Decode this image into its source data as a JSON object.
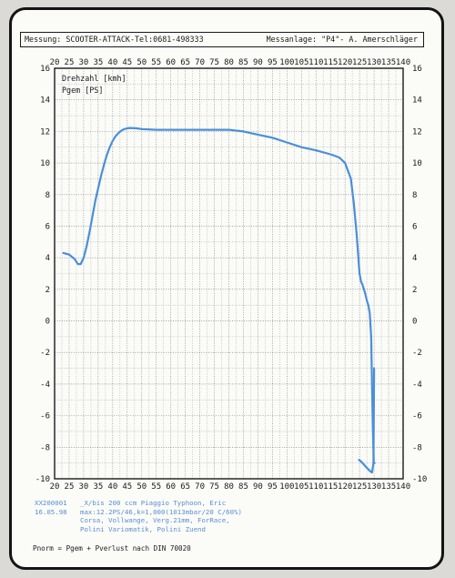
{
  "header": {
    "left": "Messung:  SCOOTER-ATTACK-Tel:0681-498333",
    "right": "Messanlage: \"P4\"- A. Amerschläger"
  },
  "chart_data": {
    "type": "line",
    "xlim": [
      20,
      140
    ],
    "ylim": [
      -10,
      16
    ],
    "x_ticks": [
      20,
      25,
      30,
      35,
      40,
      45,
      50,
      55,
      60,
      65,
      70,
      75,
      80,
      85,
      90,
      95,
      100,
      105,
      110,
      115,
      120,
      125,
      130,
      135,
      140
    ],
    "y_ticks": [
      -10,
      -8,
      -6,
      -4,
      -2,
      0,
      2,
      4,
      6,
      8,
      10,
      12,
      14,
      16
    ],
    "grid": true,
    "legend_position": "top-left",
    "labels": [
      "Drehzahl [kmh]",
      "Pgem [PS]"
    ],
    "series": [
      {
        "name": "Pgem [PS]",
        "color": "#4a8fd8",
        "x": [
          23,
          25,
          27,
          28,
          29,
          30,
          31,
          32,
          33,
          34,
          35,
          36,
          37,
          38,
          39,
          40,
          41,
          42,
          43,
          44,
          45,
          46,
          48,
          50,
          55,
          60,
          65,
          70,
          75,
          80,
          85,
          90,
          95,
          100,
          105,
          110,
          115,
          118,
          120,
          122,
          123,
          124,
          125,
          125.5,
          126,
          126.5,
          127,
          127.5,
          128,
          128.5,
          129,
          129.3,
          129.6,
          129.9,
          130.2
        ],
        "y": [
          4.3,
          4.2,
          3.9,
          3.6,
          3.6,
          4.0,
          4.7,
          5.6,
          6.6,
          7.6,
          8.4,
          9.2,
          9.9,
          10.5,
          11.0,
          11.4,
          11.7,
          11.9,
          12.05,
          12.15,
          12.2,
          12.22,
          12.2,
          12.15,
          12.1,
          12.1,
          12.1,
          12.1,
          12.1,
          12.1,
          12.0,
          11.8,
          11.6,
          11.3,
          11.0,
          10.8,
          10.55,
          10.35,
          10.0,
          9.0,
          7.5,
          5.5,
          3.0,
          2.5,
          2.3,
          2.0,
          1.7,
          1.3,
          1.0,
          0.5,
          -1.0,
          -4.0,
          -7.0,
          -9.0,
          -9.0
        ],
        "x2": [
          124.8,
          125.5,
          126.5,
          127.5,
          128.5,
          129.3,
          129.8,
          130.0
        ],
        "y2": [
          -8.8,
          -8.9,
          -9.1,
          -9.3,
          -9.5,
          -9.6,
          -9.0,
          -3.0
        ]
      }
    ]
  },
  "info": {
    "row1_a": "XX200001",
    "row1_b": "_X/bis  200 ccm Piaggio Typhoon, Eric",
    "row2_a": "16.05.98",
    "row2_b": "max:12.2PS/46,k=1,000(1013mbar/20 C/60%)",
    "row3": "Corsa, Vollwange, Verg.21mm, ForRace,",
    "row4": "Polini Variomatik, Polini Zuend"
  },
  "footer": "Pnorm = Pgem + Pverlust nach DIN 70020"
}
